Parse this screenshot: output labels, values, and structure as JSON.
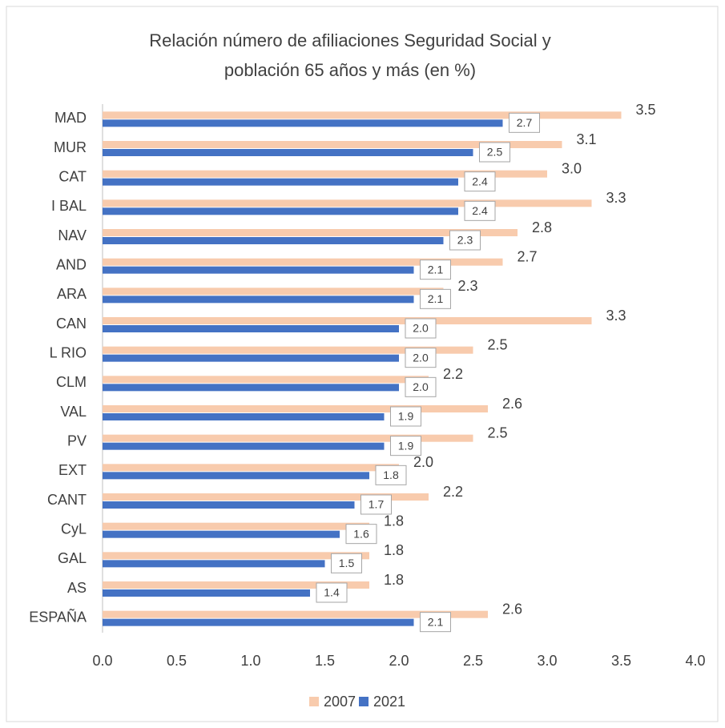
{
  "chart_data": {
    "type": "bar",
    "orientation": "horizontal",
    "title": [
      "Relación número de afiliaciones Seguridad Social y",
      "población 65 años y más (en %)"
    ],
    "categories": [
      "MAD",
      "MUR",
      "CAT",
      "I BAL",
      "NAV",
      "AND",
      "ARA",
      "CAN",
      "L RIO",
      "CLM",
      "VAL",
      "PV",
      "EXT",
      "CANT",
      "CyL",
      "GAL",
      "AS",
      "ESPAÑA"
    ],
    "series": [
      {
        "name": "2007",
        "color": "#f8cbad",
        "values": [
          3.5,
          3.1,
          3.0,
          3.3,
          2.8,
          2.7,
          2.3,
          3.3,
          2.5,
          2.2,
          2.6,
          2.5,
          2.0,
          2.2,
          1.8,
          1.8,
          1.8,
          2.6
        ],
        "value_labels": [
          "3.5",
          "3.1",
          "3.0",
          "3.3",
          "2.8",
          "2.7",
          "2.3",
          "3.3",
          "2.5",
          "2.2",
          "2.6",
          "2.5",
          "2.0",
          "2.2",
          "1.8",
          "1.8",
          "1.8",
          "2.6"
        ]
      },
      {
        "name": "2021",
        "color": "#4472c4",
        "values": [
          2.7,
          2.5,
          2.4,
          2.4,
          2.3,
          2.1,
          2.1,
          2.0,
          2.0,
          2.0,
          1.9,
          1.9,
          1.8,
          1.7,
          1.6,
          1.5,
          1.4,
          2.1
        ],
        "value_labels": [
          "2.7",
          "2.5",
          "2.4",
          "2.4",
          "2.3",
          "2.1",
          "2.1",
          "2.0",
          "2.0",
          "2.0",
          "1.9",
          "1.9",
          "1.8",
          "1.7",
          "1.6",
          "1.5",
          "1.4",
          "2.1"
        ]
      }
    ],
    "xlim": [
      0,
      4
    ],
    "xticks": [
      {
        "value": 0,
        "label": "0.0"
      },
      0.5,
      {
        "value": 1,
        "label": "1.0"
      },
      1.5,
      {
        "value": 2,
        "label": "2.0"
      },
      2.5,
      {
        "value": 3,
        "label": "3.0"
      },
      3.5,
      {
        "value": 4,
        "label": "4.0"
      }
    ],
    "grid": false,
    "legend": "bottom"
  }
}
